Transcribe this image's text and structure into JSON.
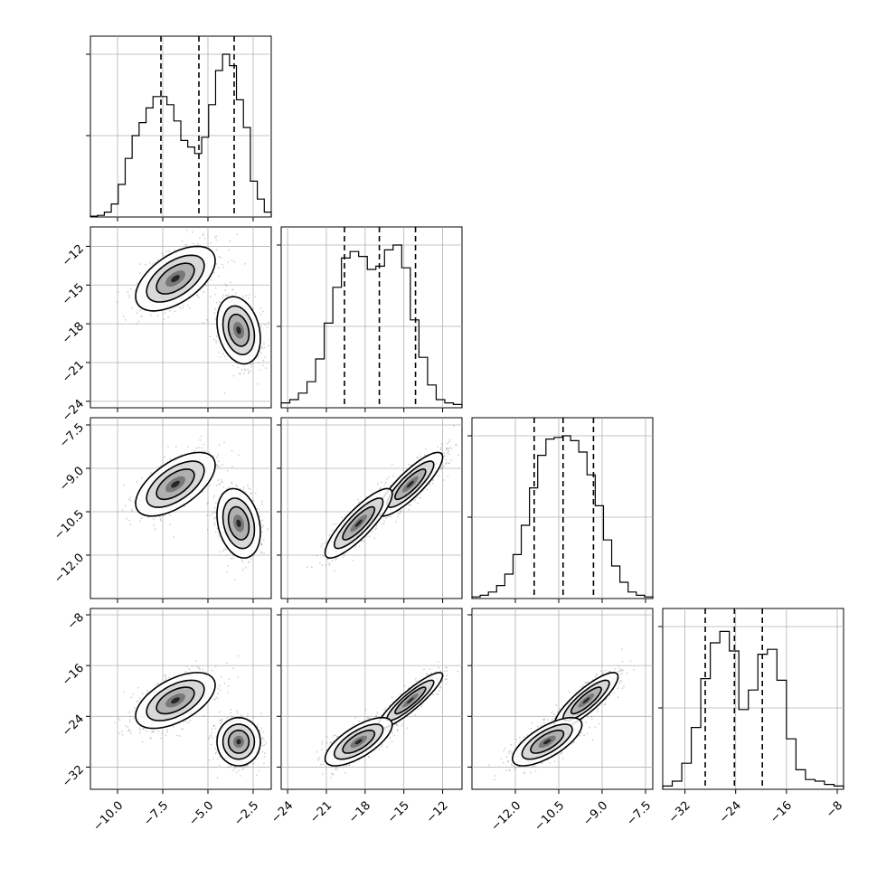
{
  "chart_data": {
    "type": "corner",
    "grid": true,
    "parameters": [
      {
        "range": [
          -11.5,
          -1.5
        ],
        "ticks": [
          -10.0,
          -7.5,
          -5.0,
          -2.5
        ],
        "tick_labels": [
          "−10.0",
          "−7.5",
          "−5.0",
          "−2.5"
        ],
        "quantiles": [
          -7.6,
          -5.5,
          -3.55
        ],
        "histogram": [
          0.005,
          0.01,
          0.03,
          0.08,
          0.2,
          0.36,
          0.5,
          0.58,
          0.67,
          0.74,
          0.74,
          0.69,
          0.59,
          0.47,
          0.43,
          0.39,
          0.49,
          0.69,
          0.9,
          1.0,
          0.93,
          0.72,
          0.55,
          0.22,
          0.11,
          0.03
        ]
      },
      {
        "range": [
          -24.5,
          -10.5
        ],
        "ticks": [
          -24,
          -21,
          -18,
          -15,
          -12
        ],
        "tick_labels": [
          "−24",
          "−21",
          "−18",
          "−15",
          "−12"
        ],
        "quantiles": [
          -19.6,
          -16.9,
          -14.1
        ],
        "histogram": [
          0.03,
          0.05,
          0.09,
          0.16,
          0.3,
          0.52,
          0.74,
          0.92,
          0.96,
          0.93,
          0.85,
          0.87,
          0.97,
          1.0,
          0.86,
          0.54,
          0.31,
          0.14,
          0.05,
          0.03,
          0.02
        ]
      },
      {
        "range": [
          -13.5,
          -7.25
        ],
        "ticks": [
          -12.0,
          -10.5,
          -9.0,
          -7.5
        ],
        "tick_labels": [
          "−12.0",
          "−10.5",
          "−9.0",
          "−7.5"
        ],
        "quantiles": [
          -11.35,
          -10.35,
          -9.3
        ],
        "histogram": [
          0.01,
          0.02,
          0.04,
          0.08,
          0.15,
          0.27,
          0.45,
          0.68,
          0.88,
          0.98,
          0.99,
          1.0,
          0.97,
          0.9,
          0.76,
          0.57,
          0.36,
          0.2,
          0.1,
          0.04,
          0.02,
          0.01
        ]
      },
      {
        "range": [
          -35.5,
          -7
        ],
        "ticks": [
          -32,
          -24,
          -16,
          -8
        ],
        "tick_labels": [
          "−32",
          "−24",
          "−16",
          "−8"
        ],
        "quantiles": [
          -28.8,
          -24.2,
          -19.8
        ],
        "histogram": [
          0.02,
          0.05,
          0.16,
          0.38,
          0.68,
          0.9,
          0.97,
          0.85,
          0.49,
          0.61,
          0.83,
          0.86,
          0.67,
          0.31,
          0.12,
          0.06,
          0.05,
          0.03,
          0.02
        ]
      }
    ],
    "mixture": [
      {
        "weight": 0.5,
        "mean": [
          -6.8,
          -14.5,
          -9.55,
          -21.5
        ],
        "sd": [
          1.1,
          1.25,
          0.55,
          2.2
        ]
      },
      {
        "weight": 0.5,
        "mean": [
          -3.3,
          -18.5,
          -10.9,
          -28.0
        ],
        "sd": [
          0.6,
          1.3,
          0.6,
          1.9
        ]
      }
    ],
    "pair_correlation": {
      "1-0": [
        0.55,
        -0.25
      ],
      "2-0": [
        0.6,
        -0.25
      ],
      "2-1": [
        0.85,
        0.85
      ],
      "3-0": [
        0.55,
        0.0
      ],
      "3-1": [
        0.9,
        0.7
      ],
      "3-2": [
        0.85,
        0.7
      ]
    }
  }
}
